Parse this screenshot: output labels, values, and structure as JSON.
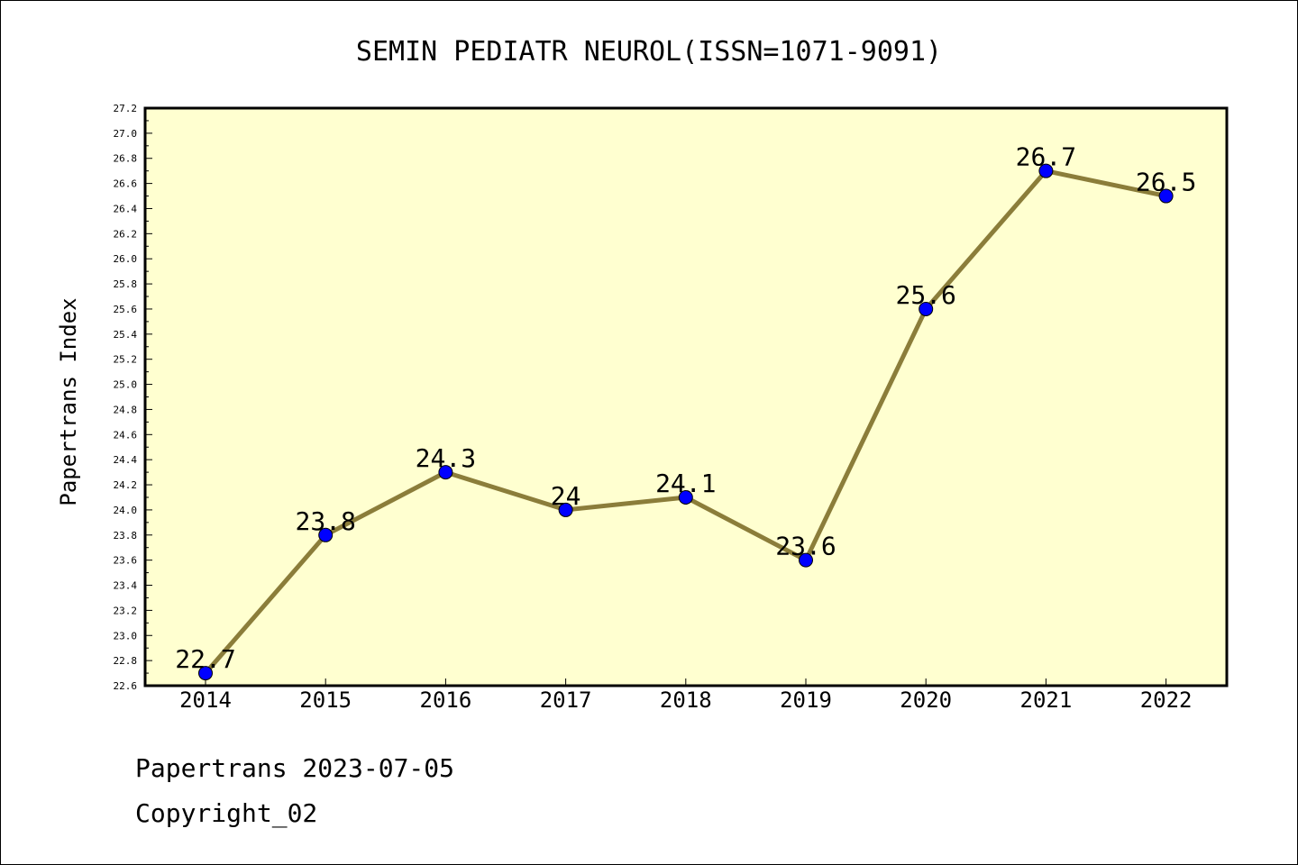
{
  "chart_data": {
    "type": "line",
    "title": "SEMIN PEDIATR NEUROL(ISSN=1071-9091)",
    "xlabel": "",
    "ylabel": "Papertrans Index",
    "categories": [
      "2014",
      "2015",
      "2016",
      "2017",
      "2018",
      "2019",
      "2020",
      "2021",
      "2022"
    ],
    "values": [
      22.7,
      23.8,
      24.3,
      24.0,
      24.1,
      23.6,
      25.6,
      26.7,
      26.5
    ],
    "data_labels": [
      "22.7",
      "23.8",
      "24.3",
      "24",
      "24.1",
      "23.6",
      "25.6",
      "26.7",
      "26.5"
    ],
    "ylim": [
      22.6,
      27.2
    ],
    "yticks": [
      "22.6",
      "22.8",
      "23.0",
      "23.2",
      "23.4",
      "23.6",
      "23.8",
      "24.0",
      "24.2",
      "24.4",
      "24.6",
      "24.8",
      "25.0",
      "25.2",
      "25.4",
      "25.6",
      "25.8",
      "26.0",
      "26.2",
      "26.4",
      "26.6",
      "26.8",
      "27.0",
      "27.2"
    ],
    "grid": false,
    "colors": {
      "plot_background": "#ffffd0",
      "line": "#8b7d3a",
      "marker": "#0000ff"
    }
  },
  "footer": {
    "line1": "Papertrans 2023-07-05",
    "line2": "Copyright_02"
  }
}
